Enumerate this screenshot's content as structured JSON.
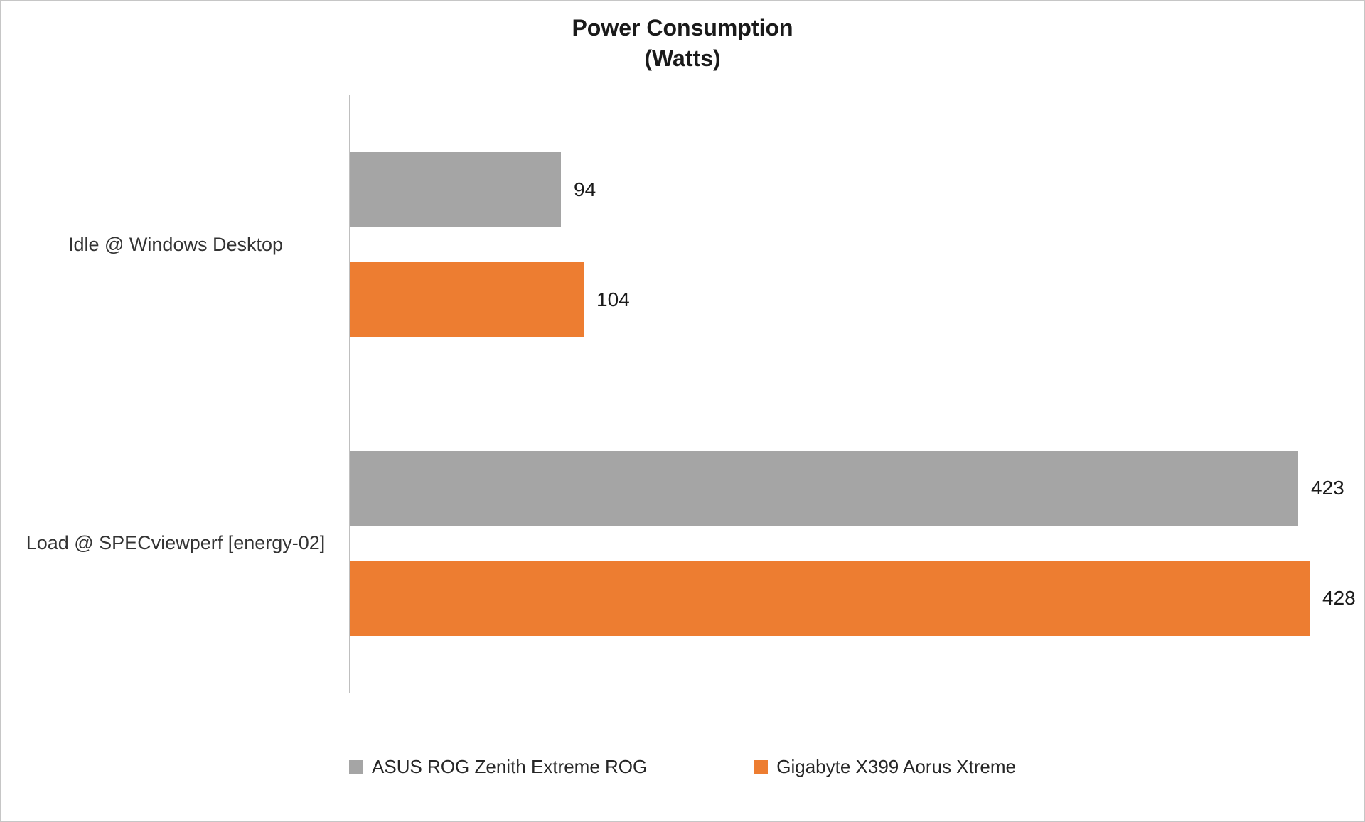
{
  "frame": {
    "background": "#ffffff",
    "border_color": "#c6c6c6"
  },
  "chart_data": {
    "type": "bar",
    "orientation": "horizontal",
    "title": "Power Consumption",
    "subtitle": "(Watts)",
    "categories": [
      "Idle @ Windows Desktop",
      "Load @ SPECviewperf [energy-02]"
    ],
    "series": [
      {
        "name": "ASUS ROG Zenith Extreme ROG",
        "color": "#a5a5a5",
        "values": [
          94,
          423
        ]
      },
      {
        "name": "Gigabyte X399 Aorus Xtreme",
        "color": "#ed7d31",
        "values": [
          104,
          428
        ]
      }
    ],
    "data_labels": [
      [
        "94",
        "423"
      ],
      [
        "104",
        "428"
      ]
    ],
    "xlim": [
      0,
      450
    ],
    "grid": false,
    "legend_position": "bottom",
    "axis_color": "#bfbfbf",
    "text_color": "#1a1a1a"
  }
}
